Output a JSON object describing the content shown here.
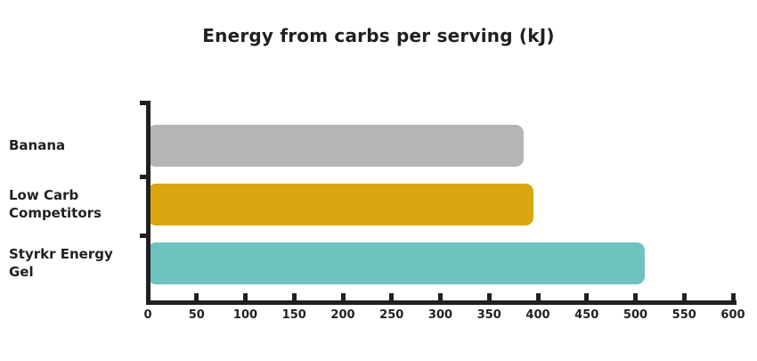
{
  "chart_data": {
    "type": "bar",
    "orientation": "horizontal",
    "title": "Energy from carbs per serving (kJ)",
    "categories": [
      "Banana",
      "Low Carb Competitors",
      "Styrkr Energy Gel"
    ],
    "values": [
      385,
      395,
      510
    ],
    "bar_colors": [
      "#b5b5b5",
      "#d9a610",
      "#6fc3bf"
    ],
    "xlabel": "",
    "ylabel": "",
    "xlim": [
      0,
      600
    ],
    "xticks": [
      0,
      50,
      100,
      150,
      200,
      250,
      300,
      350,
      400,
      450,
      500,
      550,
      600
    ],
    "xtick_labels": [
      "0",
      "50",
      "100",
      "150",
      "200",
      "250",
      "300",
      "350",
      "400",
      "450",
      "500",
      "550",
      "600"
    ],
    "grid": false,
    "legend": false,
    "axis_color": "#221f20",
    "text_color": "#221f20",
    "background": "#ffffff"
  }
}
